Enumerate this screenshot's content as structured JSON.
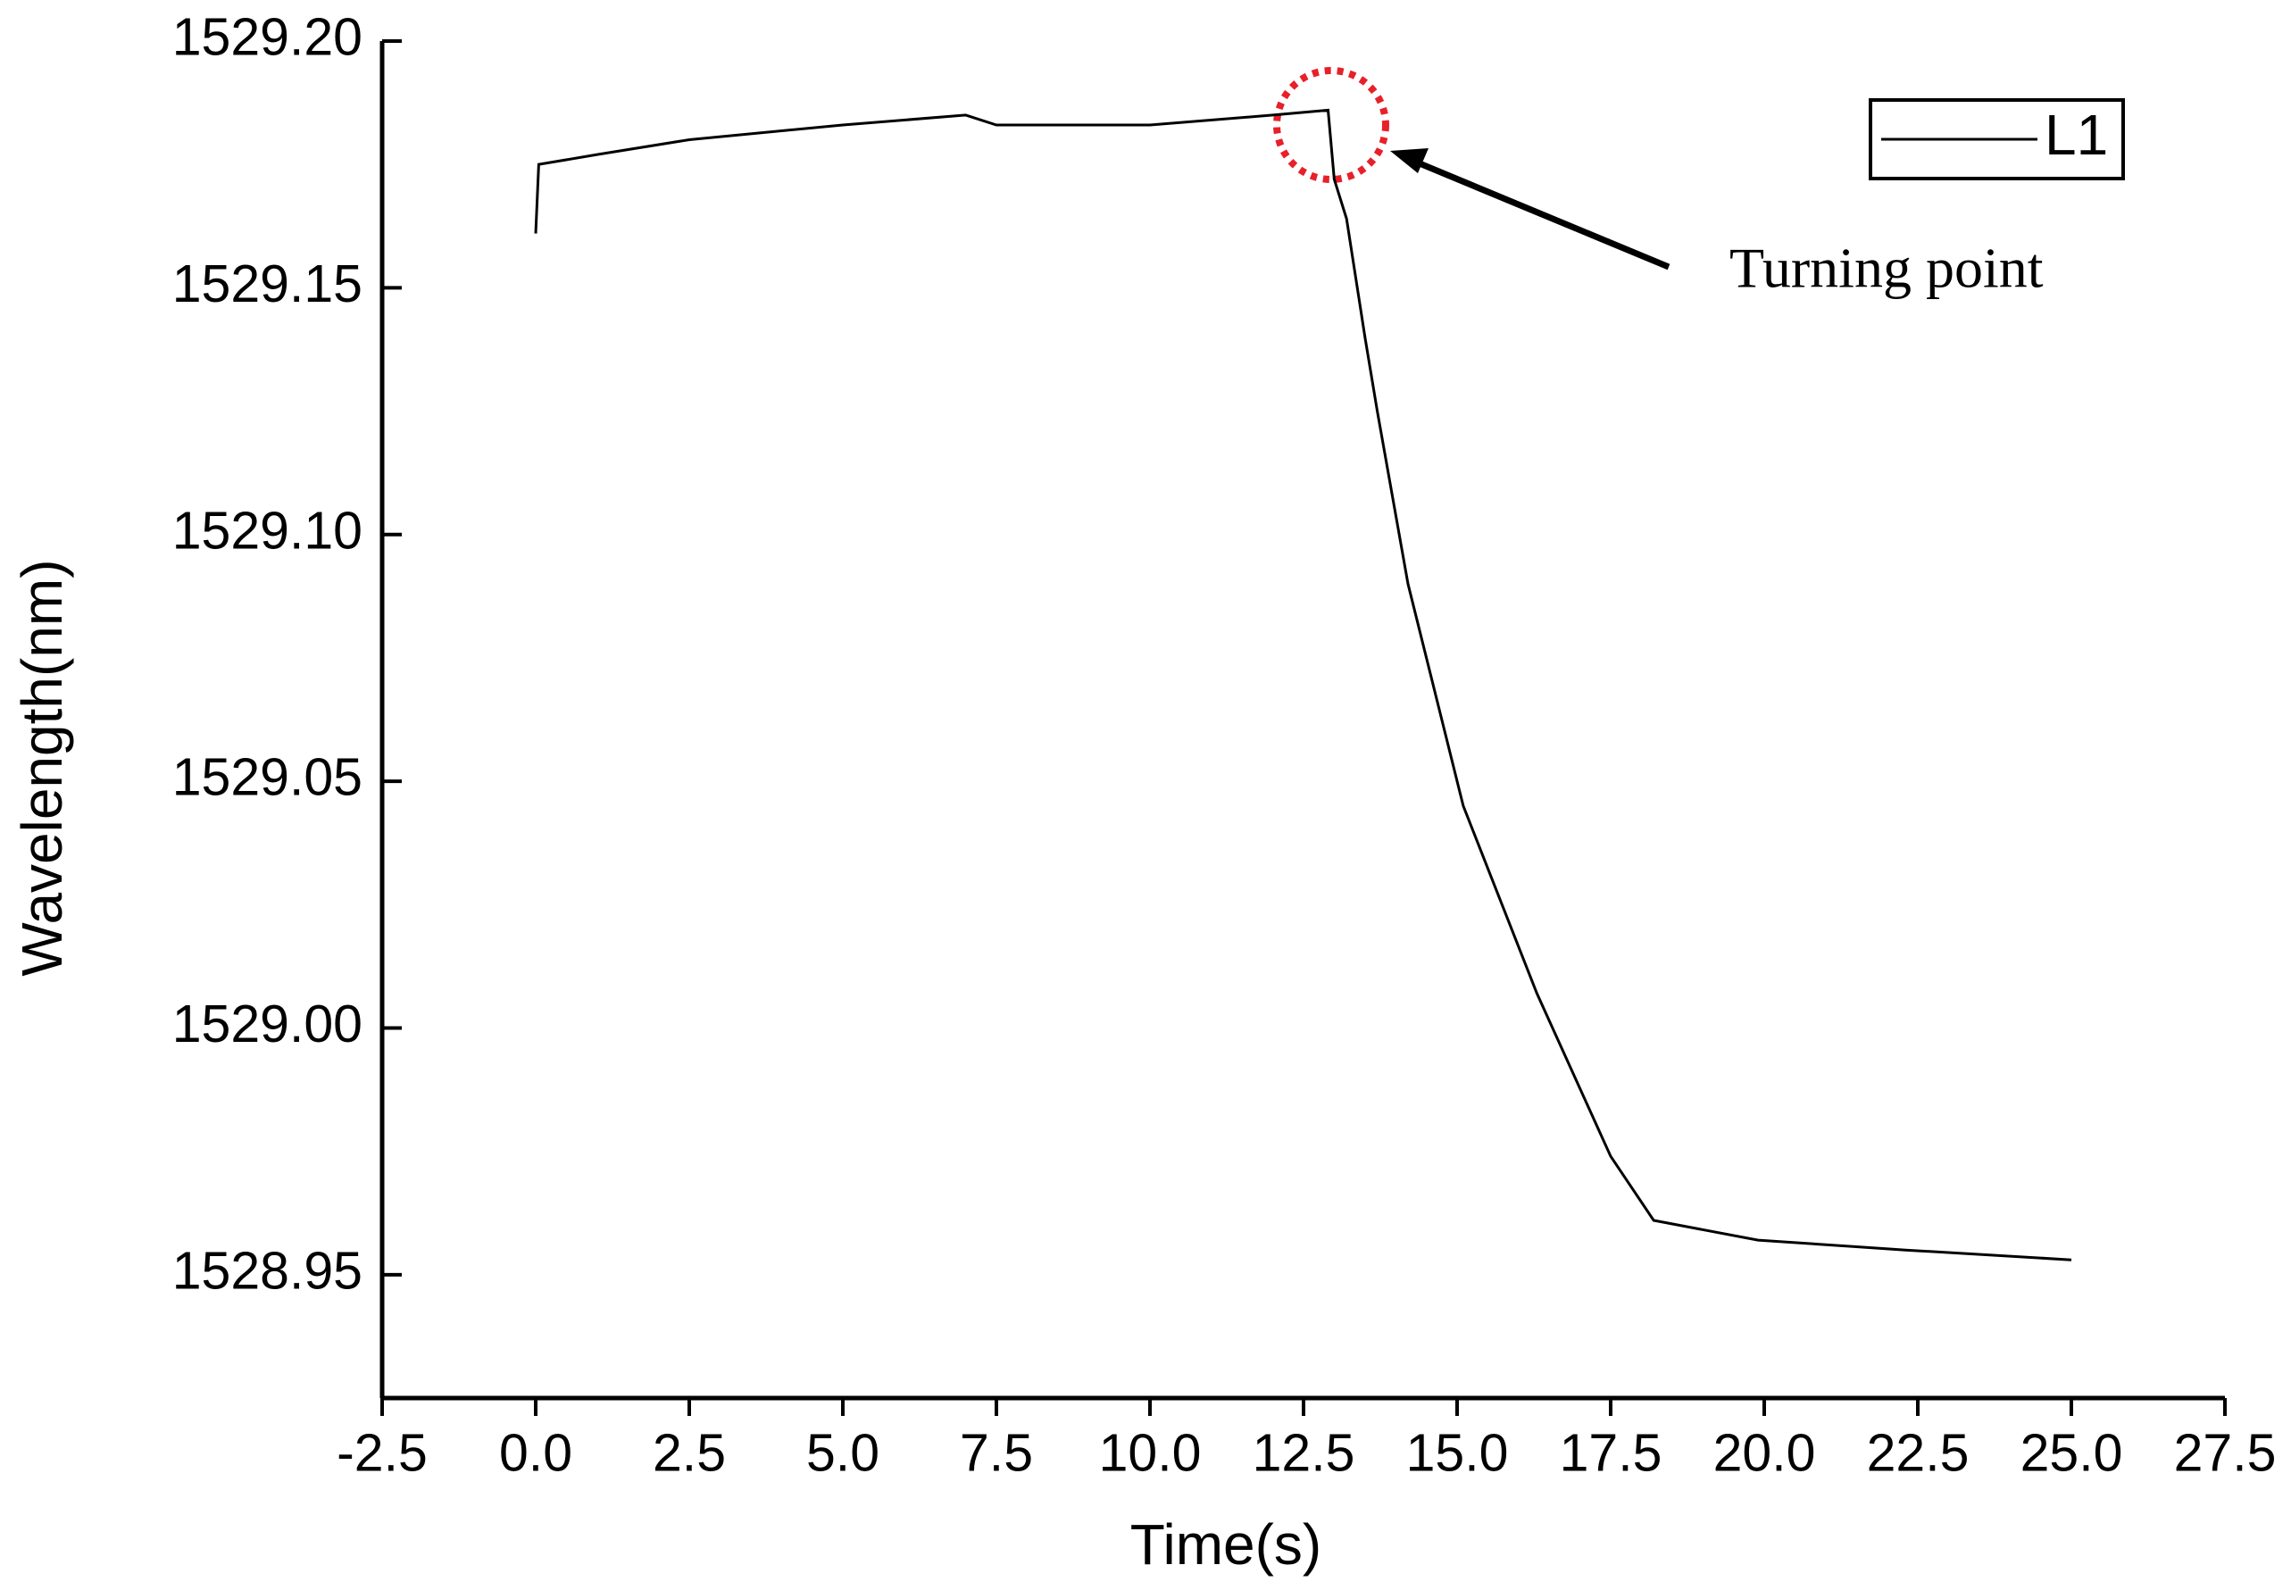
{
  "chart_data": {
    "type": "line",
    "x_label": "Time(s)",
    "y_label": "Wavelength(nm)",
    "annotation": "Turning point",
    "x": [
      0,
      0.05,
      1,
      2.5,
      5,
      7,
      7.5,
      10,
      12,
      12.9,
      13.0,
      13.2,
      13.5,
      13.7,
      14.2,
      15.1,
      16.3,
      17.5,
      18.2,
      19.9,
      22.3,
      25
    ],
    "series": [
      {
        "name": "L1",
        "color": "#000000",
        "values": [
          1529.161,
          1529.175,
          1529.177,
          1529.18,
          1529.183,
          1529.185,
          1529.183,
          1529.183,
          1529.185,
          1529.186,
          1529.172,
          1529.164,
          1529.14,
          1529.125,
          1529.09,
          1529.045,
          1529.007,
          1528.974,
          1528.961,
          1528.957,
          1528.955,
          1528.953
        ]
      }
    ],
    "xlim": [
      -2.5,
      27.5
    ],
    "ylim": [
      1528.925,
      1529.2
    ],
    "xticks": [
      -2.5,
      {
        "value": 0,
        "label": "0.0"
      },
      2.5,
      {
        "value": 5,
        "label": "5.0"
      },
      7.5,
      {
        "value": 10,
        "label": "10.0"
      },
      12.5,
      {
        "value": 15,
        "label": "15.0"
      },
      17.5,
      {
        "value": 20,
        "label": "20.0"
      },
      22.5,
      {
        "value": 25,
        "label": "25.0"
      },
      27.5
    ],
    "yticks": [
      {
        "value": 1528.95,
        "label": "1528.95"
      },
      {
        "value": 1529,
        "label": "1529.00"
      },
      {
        "value": 1529.05,
        "label": "1529.05"
      },
      {
        "value": 1529.1,
        "label": "1529.10"
      },
      {
        "value": 1529.15,
        "label": "1529.15"
      },
      {
        "value": 1529.2,
        "label": "1529.20"
      }
    ],
    "grid": false,
    "legend": "top-right"
  }
}
